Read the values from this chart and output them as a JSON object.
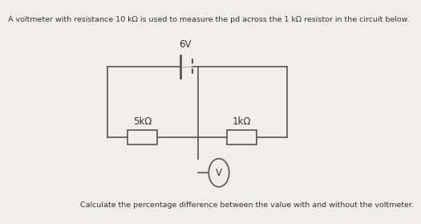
{
  "title": "A voltmeter with resistance 10 kΩ is used to measure the pd across the 1 kΩ resistor in the circuit below.",
  "footer": "Calculate the percentage difference between the value with and without the voltmeter.",
  "battery_label": "6V",
  "r1_label": "5kΩ",
  "r2_label": "1kΩ",
  "voltmeter_label": "V",
  "bg_color": "#f0eeea",
  "line_color": "#555555",
  "text_color": "#333333",
  "title_fontsize": 6.8,
  "footer_fontsize": 6.8,
  "label_fontsize": 8.5,
  "bat_label_fontsize": 8.5
}
